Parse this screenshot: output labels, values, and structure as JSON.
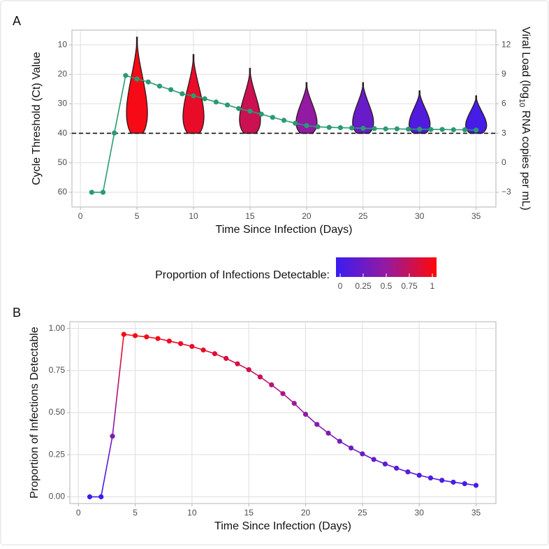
{
  "chart_data": [
    {
      "panel": "A",
      "type": "violin",
      "xlabel": "Time Since Infection (Days)",
      "ylabel": "Cycle Threshold (Ct) Value",
      "y2label": [
        "Viral Load (log",
        "10",
        " RNA copies per mL)"
      ],
      "xlim": [
        -0.75,
        36.75
      ],
      "xticks": [
        0,
        5,
        10,
        15,
        20,
        25,
        30,
        35
      ],
      "ylim": [
        65,
        5
      ],
      "yticks": [
        10,
        20,
        30,
        40,
        50,
        60
      ],
      "y2lim": [
        -4.5,
        13.5
      ],
      "y2ticks": [
        {
          "value": -3,
          "label": "−3"
        },
        0,
        3,
        6,
        9,
        12
      ],
      "grid": true,
      "hline": 40,
      "violins": {
        "x": [
          5,
          10,
          15,
          20,
          25,
          30,
          35
        ],
        "top": [
          7.4,
          13.3,
          18,
          22.8,
          22.8,
          25.6,
          27.3
        ],
        "bottom": [
          40,
          40,
          40,
          40,
          40,
          40,
          40
        ],
        "proportion": [
          0.957,
          0.893,
          0.755,
          0.49,
          0.255,
          0.128,
          0.068
        ]
      },
      "series": [
        {
          "color": "#2a9a72",
          "x": [
            1,
            2,
            3,
            4,
            5,
            6,
            7,
            8,
            9,
            10,
            11,
            12,
            13,
            14,
            15,
            16,
            17,
            18,
            19,
            20,
            21,
            22,
            23,
            24,
            25,
            26,
            27,
            28,
            29,
            30,
            31,
            32,
            33,
            34,
            35
          ],
          "values": [
            60,
            60,
            39.9,
            20.4,
            21.6,
            22.6,
            24,
            25.2,
            26.6,
            27.3,
            28.3,
            29.4,
            30.4,
            31.6,
            32.5,
            33.5,
            34.6,
            35.6,
            36.6,
            37.4,
            37.8,
            38,
            38.1,
            38.2,
            38.3,
            38.4,
            38.5,
            38.5,
            38.6,
            38.6,
            38.7,
            38.7,
            38.8,
            38.8,
            38.9
          ]
        }
      ],
      "legend": {
        "title": "Proportion of Infections Detectable:",
        "ticks": [
          0,
          0.25,
          0.5,
          0.75,
          1
        ]
      },
      "color_scale": [
        "#3a1cf2",
        "#951aa0",
        "#ff0808"
      ]
    },
    {
      "panel": "B",
      "type": "line",
      "xlabel": "Time Since Infection (Days)",
      "ylabel": "Proportion of Infections Detectable",
      "xlim": [
        -0.75,
        36.75
      ],
      "xticks": [
        0,
        5,
        10,
        15,
        20,
        25,
        30,
        35
      ],
      "ylim": [
        -0.04,
        1.04
      ],
      "yticks": [
        {
          "value": 0,
          "label": "0.00"
        },
        {
          "value": 0.25,
          "label": "0.25"
        },
        {
          "value": 0.5,
          "label": "0.50"
        },
        {
          "value": 0.75,
          "label": "0.75"
        },
        {
          "value": 1,
          "label": "1.00"
        }
      ],
      "grid": true,
      "series": [
        {
          "x": [
            1,
            2,
            3,
            4,
            5,
            6,
            7,
            8,
            9,
            10,
            11,
            12,
            13,
            14,
            15,
            16,
            17,
            18,
            19,
            20,
            21,
            22,
            23,
            24,
            25,
            26,
            27,
            28,
            29,
            30,
            31,
            32,
            33,
            34,
            35
          ],
          "values": [
            0,
            0,
            0.36,
            0.965,
            0.957,
            0.95,
            0.94,
            0.925,
            0.91,
            0.893,
            0.872,
            0.85,
            0.822,
            0.79,
            0.755,
            0.712,
            0.665,
            0.613,
            0.555,
            0.49,
            0.43,
            0.378,
            0.33,
            0.29,
            0.255,
            0.222,
            0.195,
            0.17,
            0.148,
            0.128,
            0.112,
            0.098,
            0.087,
            0.078,
            0.068
          ]
        }
      ],
      "color_scale": [
        "#3a1cf2",
        "#951aa0",
        "#ff0808"
      ]
    }
  ]
}
